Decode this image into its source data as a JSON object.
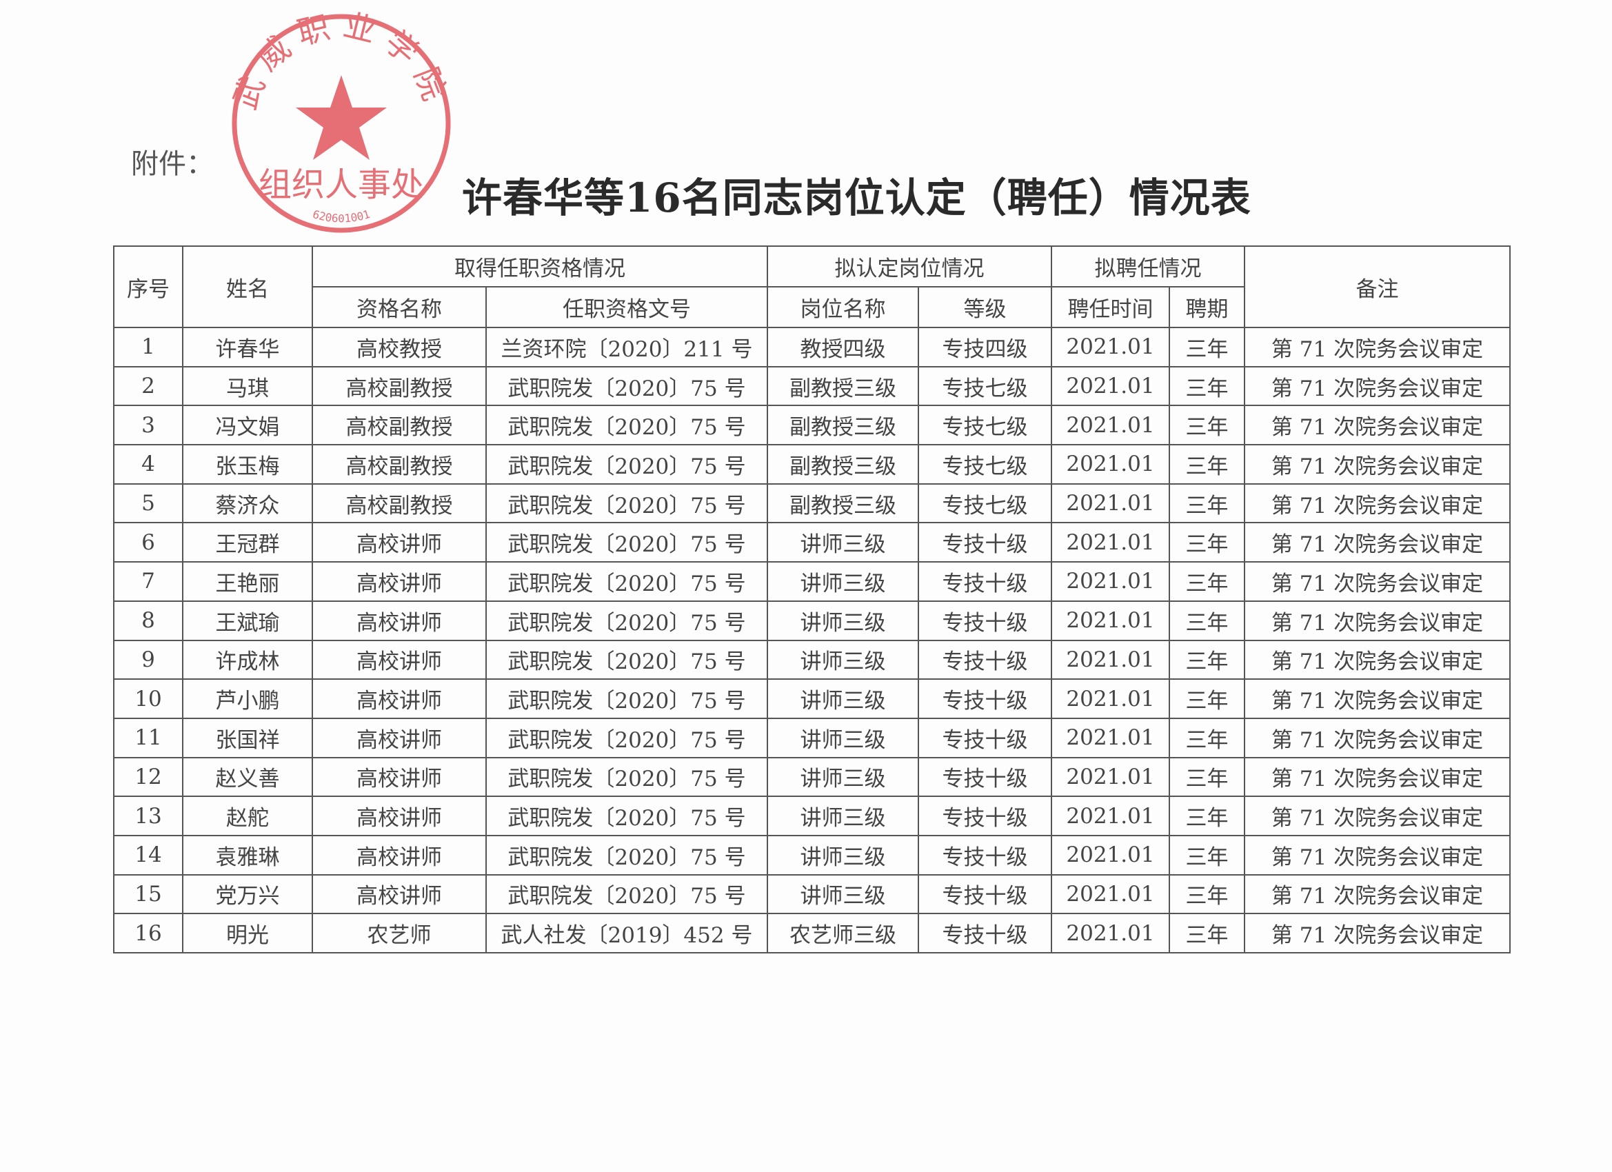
{
  "attachment_label": "附件：",
  "title": "许春华等16名同志岗位认定（聘任）情况表",
  "seal": {
    "top_text": "武威职业学院",
    "bottom_text": "组织人事处",
    "number": "620601001",
    "color": "#e0474f"
  },
  "headers": {
    "seq": "序号",
    "name": "姓名",
    "qualification_group": "取得任职资格情况",
    "qualification_name": "资格名称",
    "qualification_doc": "任职资格文号",
    "position_group": "拟认定岗位情况",
    "position_name": "岗位名称",
    "grade": "等级",
    "employment_group": "拟聘任情况",
    "employment_time": "聘任时间",
    "term": "聘期",
    "remark": "备注"
  },
  "rows": [
    [
      "1",
      "许春华",
      "高校教授",
      "兰资环院〔2020〕211 号",
      "教授四级",
      "专技四级",
      "2021.01",
      "三年",
      "第 71 次院务会议审定"
    ],
    [
      "2",
      "马琪",
      "高校副教授",
      "武职院发〔2020〕75 号",
      "副教授三级",
      "专技七级",
      "2021.01",
      "三年",
      "第 71 次院务会议审定"
    ],
    [
      "3",
      "冯文娟",
      "高校副教授",
      "武职院发〔2020〕75 号",
      "副教授三级",
      "专技七级",
      "2021.01",
      "三年",
      "第 71 次院务会议审定"
    ],
    [
      "4",
      "张玉梅",
      "高校副教授",
      "武职院发〔2020〕75 号",
      "副教授三级",
      "专技七级",
      "2021.01",
      "三年",
      "第 71 次院务会议审定"
    ],
    [
      "5",
      "蔡济众",
      "高校副教授",
      "武职院发〔2020〕75 号",
      "副教授三级",
      "专技七级",
      "2021.01",
      "三年",
      "第 71 次院务会议审定"
    ],
    [
      "6",
      "王冠群",
      "高校讲师",
      "武职院发〔2020〕75 号",
      "讲师三级",
      "专技十级",
      "2021.01",
      "三年",
      "第 71 次院务会议审定"
    ],
    [
      "7",
      "王艳丽",
      "高校讲师",
      "武职院发〔2020〕75 号",
      "讲师三级",
      "专技十级",
      "2021.01",
      "三年",
      "第 71 次院务会议审定"
    ],
    [
      "8",
      "王斌瑜",
      "高校讲师",
      "武职院发〔2020〕75 号",
      "讲师三级",
      "专技十级",
      "2021.01",
      "三年",
      "第 71 次院务会议审定"
    ],
    [
      "9",
      "许成林",
      "高校讲师",
      "武职院发〔2020〕75 号",
      "讲师三级",
      "专技十级",
      "2021.01",
      "三年",
      "第 71 次院务会议审定"
    ],
    [
      "10",
      "芦小鹏",
      "高校讲师",
      "武职院发〔2020〕75 号",
      "讲师三级",
      "专技十级",
      "2021.01",
      "三年",
      "第 71 次院务会议审定"
    ],
    [
      "11",
      "张国祥",
      "高校讲师",
      "武职院发〔2020〕75 号",
      "讲师三级",
      "专技十级",
      "2021.01",
      "三年",
      "第 71 次院务会议审定"
    ],
    [
      "12",
      "赵义善",
      "高校讲师",
      "武职院发〔2020〕75 号",
      "讲师三级",
      "专技十级",
      "2021.01",
      "三年",
      "第 71 次院务会议审定"
    ],
    [
      "13",
      "赵舵",
      "高校讲师",
      "武职院发〔2020〕75 号",
      "讲师三级",
      "专技十级",
      "2021.01",
      "三年",
      "第 71 次院务会议审定"
    ],
    [
      "14",
      "袁雅琳",
      "高校讲师",
      "武职院发〔2020〕75 号",
      "讲师三级",
      "专技十级",
      "2021.01",
      "三年",
      "第 71 次院务会议审定"
    ],
    [
      "15",
      "党万兴",
      "高校讲师",
      "武职院发〔2020〕75 号",
      "讲师三级",
      "专技十级",
      "2021.01",
      "三年",
      "第 71 次院务会议审定"
    ],
    [
      "16",
      "明光",
      "农艺师",
      "武人社发〔2019〕452 号",
      "农艺师三级",
      "专技十级",
      "2021.01",
      "三年",
      "第 71 次院务会议审定"
    ]
  ]
}
